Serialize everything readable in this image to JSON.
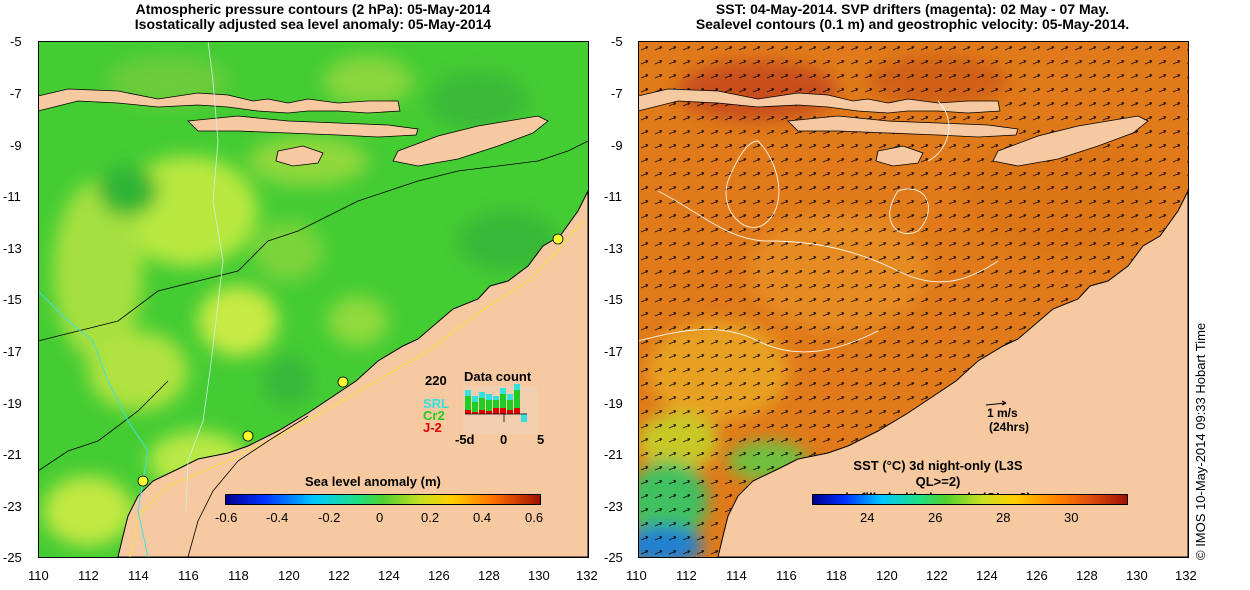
{
  "left_panel": {
    "title_line1": "Atmospheric pressure contours (2 hPa): 05-May-2014",
    "title_line2": "Isostatically adjusted sea level anomaly: 05-May-2014",
    "colorbar_label": "Sea level anomaly (m)",
    "colorbar_ticks": [
      "-0.6",
      "-0.4",
      "-0.2",
      "0",
      "0.2",
      "0.4",
      "0.6"
    ],
    "inset": {
      "title": "Data count",
      "max_label": "220",
      "series": [
        {
          "name": "SRL",
          "color": "#33e0e0"
        },
        {
          "name": "Cr2",
          "color": "#22cc22"
        },
        {
          "name": "J-2",
          "color": "#e00000"
        }
      ],
      "x_ticks": [
        "-5d",
        "0",
        "5"
      ]
    }
  },
  "right_panel": {
    "title_line1": "SST: 04-May-2014. SVP drifters (magenta): 02 May - 07 May.",
    "title_line2": "Sealevel contours (0.1 m) and geostrophic velocity: 05-May-2014.",
    "velocity_scale_label": "1 m/s",
    "velocity_scale_sub": "(24hrs)",
    "colorbar_label_line1": "SST (°C)  3d night-only (L3S QL>=2)",
    "colorbar_label_line2": "in-filled with day-only (QL>=2)",
    "colorbar_ticks": [
      "24",
      "26",
      "28",
      "30"
    ]
  },
  "axes": {
    "lat_ticks": [
      "-5",
      "-7",
      "-9",
      "-11",
      "-13",
      "-15",
      "-17",
      "-19",
      "-21",
      "-23",
      "-25"
    ],
    "lon_ticks": [
      "110",
      "112",
      "114",
      "116",
      "118",
      "120",
      "122",
      "124",
      "126",
      "128",
      "130",
      "132"
    ]
  },
  "credit": "© IMOS 10-May-2014 09:33 Hobart Time",
  "colors": {
    "land": "#f7c9a0",
    "sla_main": "#44cc33",
    "sst_main": "#e08020",
    "outline": "#000000"
  }
}
